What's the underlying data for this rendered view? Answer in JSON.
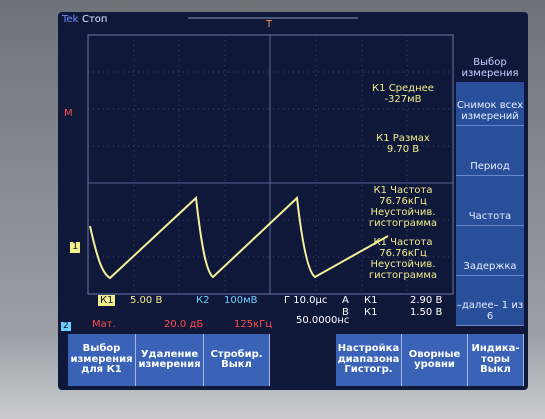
{
  "header": {
    "brand": "Tek",
    "state": "Стоп"
  },
  "markers": {
    "trigger": "T",
    "math": "M",
    "ch1": "1",
    "ch2": "2"
  },
  "measurements": [
    {
      "name": "К1 Среднее",
      "value": "-327мВ"
    },
    {
      "name": "К1 Размах",
      "value": "9.70 В"
    },
    {
      "name": "К1 Частота",
      "value": "76.76кГц",
      "note": "Неустойчив.\nгистограмма"
    },
    {
      "name": "К1 Частота",
      "value": "76.76кГц",
      "note": "Неустойчив.\nгистограмма"
    }
  ],
  "side_menu": {
    "title": "Выбор\nизмерения",
    "items": [
      "Снимок\nвсех\nизмерений",
      "Период",
      "Частота",
      "Задержка",
      "–далее–\n1 из 6"
    ]
  },
  "status": {
    "ch1": "К1",
    "ch1_scale": "5.00 В",
    "ch2": "К2",
    "ch2_scale": "100мВ",
    "time": "Г 10.0μс",
    "trig_a": "А",
    "trig_a_src": "К1",
    "trig_a_level": "2.90 В",
    "trig_b": "В",
    "trig_b_src": "К1",
    "trig_b_level": "1.50 В",
    "math": "Мат.",
    "math_scale": "20.0 дБ",
    "math_freq": "125кГц",
    "position": "50.0000нс"
  },
  "bottom_menu": [
    "Выбор\nизмерения\nдля К1",
    "Удаление\nизмерения",
    "Стробир.\nВыкл",
    "Настройка\nдиапазона\nГистогр.",
    "Оворные\nуровни",
    "Индика-\nторы\nВыкл"
  ]
}
